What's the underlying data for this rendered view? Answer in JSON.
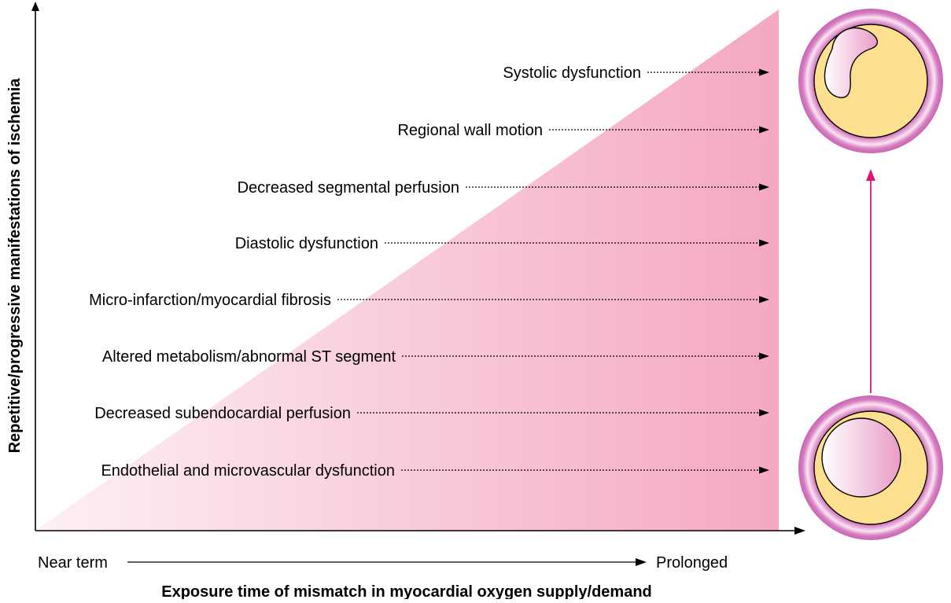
{
  "diagram": {
    "y_axis_label": "Repetitive/progressive manifestations of ischemia",
    "x_axis_label": "Exposure time of mismatch in myocardial oxygen supply/demand",
    "x_axis_start": "Near term",
    "x_axis_end": "Prolonged",
    "manifestations": [
      "Systolic dysfunction",
      "Regional wall motion",
      "Decreased segmental perfusion",
      "Diastolic dysfunction",
      "Micro-infarction/myocardial fibrosis",
      "Altered metabolism/abnormal ST segment",
      "Decreased subendocardial perfusion",
      "Endothelial and microvascular dysfunction"
    ],
    "vessels": [
      {
        "icon": "occluded-vessel-cross-section-icon"
      },
      {
        "icon": "mildly-narrowed-vessel-cross-section-icon"
      }
    ],
    "colors": {
      "triangle_light": "#fdf0f5",
      "triangle_dark": "#f4a8c1",
      "vessel_ring": "#d77fc3",
      "vessel_wall": "#fde08f",
      "progression_arrow": "#e0147a"
    }
  }
}
